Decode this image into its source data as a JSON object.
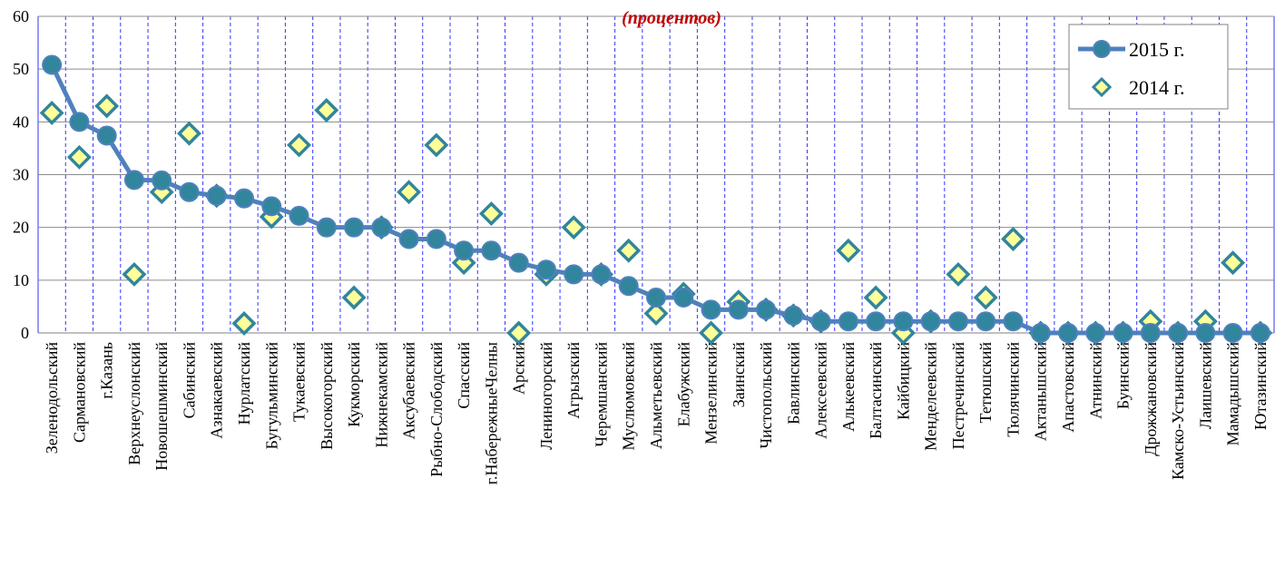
{
  "chart_data": {
    "type": "line",
    "subtitle": "(процентов)",
    "ylim": [
      0,
      60
    ],
    "yticks": [
      0,
      10,
      20,
      30,
      40,
      50,
      60
    ],
    "grid": {
      "horizontal": true,
      "vertical": true
    },
    "legend_position": "top-right",
    "categories": [
      "Зеленодольский",
      "Сармановский",
      "г.Казань",
      "Верхнеуслонский",
      "Новошешминский",
      "Сабинский",
      "Азнакаевский",
      "Нурлатский",
      "Бугульминский",
      "Тукаевский",
      "Высокогорский",
      "Кукморский",
      "Нижнекамский",
      "Аксубаевский",
      "Рыбно-Слободский",
      "Спасский",
      "г.НабережныеЧелны",
      "Арский",
      "Лениногорский",
      "Агрызский",
      "Черемшанский",
      "Муслюмовский",
      "Альметьевский",
      "Елабужский",
      "Мензелинский",
      "Заинский",
      "Чистопольский",
      "Бавлинский",
      "Алексеевский",
      "Алькеевский",
      "Балтасинский",
      "Кайбицкий",
      "Менделеевский",
      "Пестречинский",
      "Тетюшский",
      "Тюлячинский",
      "Актанышский",
      "Апастовский",
      "Атнинский",
      "Буинский",
      "Дрожжановский",
      "Камско-Устьинский",
      "Лаишевский",
      "Мамадышский",
      "Ютазинский"
    ],
    "series": [
      {
        "name": "2015 г.",
        "color": "#4f81bd",
        "marker": "circle",
        "line": true,
        "values": [
          50.8,
          40.0,
          37.4,
          29.0,
          28.9,
          26.7,
          26.0,
          25.5,
          24.0,
          22.2,
          20.0,
          20.0,
          20.0,
          17.8,
          17.8,
          15.6,
          15.6,
          13.3,
          12.0,
          11.1,
          11.1,
          8.9,
          6.7,
          6.7,
          4.4,
          4.4,
          4.4,
          3.3,
          2.2,
          2.2,
          2.2,
          2.2,
          2.2,
          2.2,
          2.2,
          2.2,
          0,
          0,
          0,
          0,
          0,
          0,
          0,
          0,
          0
        ]
      },
      {
        "name": "2014 г.",
        "color": "#31859c",
        "fill": "#ffff99",
        "marker": "diamond",
        "line": false,
        "values": [
          41.7,
          33.3,
          43.0,
          11.1,
          26.7,
          37.8,
          26.0,
          1.8,
          22.0,
          35.6,
          42.2,
          6.7,
          20.0,
          26.7,
          35.6,
          13.3,
          22.6,
          0,
          11.1,
          20.0,
          11.1,
          15.6,
          3.7,
          7.4,
          0,
          5.9,
          4.4,
          3.3,
          2.2,
          15.6,
          6.7,
          0,
          2.2,
          11.1,
          6.7,
          17.8,
          0,
          0,
          0,
          0,
          2.2,
          0,
          2.2,
          13.3,
          0
        ]
      }
    ]
  }
}
